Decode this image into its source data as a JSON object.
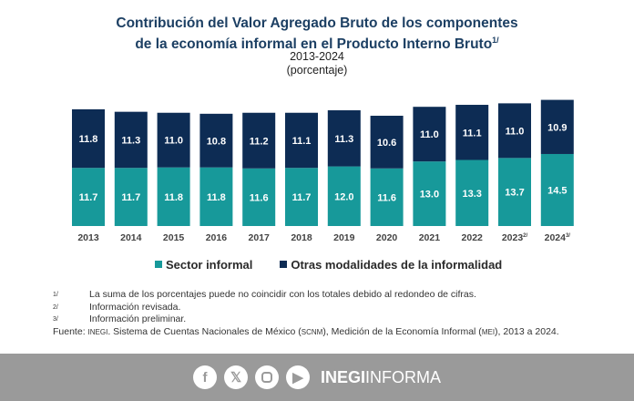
{
  "chart_data": {
    "type": "bar",
    "stacked": true,
    "title_line1": "Contribución del Valor Agregado Bruto de los componentes",
    "title_line2": "de la economía informal en el Producto Interno Bruto",
    "title_note": "1/",
    "subtitle": "2013-2024",
    "unit": "(porcentaje)",
    "categories": [
      "2013",
      "2014",
      "2015",
      "2016",
      "2017",
      "2018",
      "2019",
      "2020",
      "2021",
      "2022",
      "2023",
      "2024"
    ],
    "category_notes": [
      "",
      "",
      "",
      "",
      "",
      "",
      "",
      "",
      "",
      "",
      "2/",
      "3/"
    ],
    "series": [
      {
        "name": "Sector informal",
        "color": "#17999a",
        "values": [
          11.7,
          11.7,
          11.8,
          11.8,
          11.6,
          11.7,
          12.0,
          11.6,
          13.0,
          13.3,
          13.7,
          14.5
        ]
      },
      {
        "name": "Otras modalidades de la informalidad",
        "color": "#0d2c54",
        "values": [
          11.8,
          11.3,
          11.0,
          10.8,
          11.2,
          11.1,
          11.3,
          10.6,
          11.0,
          11.1,
          11.0,
          10.9
        ]
      }
    ],
    "legend": "bottom",
    "grid": false
  },
  "notes": [
    {
      "mark": "1/",
      "text": "La suma de los porcentajes puede no coincidir con los totales debido al redondeo de cifras."
    },
    {
      "mark": "2/",
      "text": "Información revisada."
    },
    {
      "mark": "3/",
      "text": "Información preliminar."
    }
  ],
  "source": {
    "label": "Fuente:",
    "org": "INEGI",
    "text1": ". Sistema de Cuentas Nacionales de México (",
    "scnm": "SCNM",
    "text2": "), Medición de la Economía Informal (",
    "mei": "MEI",
    "text3": "), 2013 a 2024."
  },
  "footer": {
    "brand_bold": "INEGI",
    "brand_light": "INFORMA",
    "icons": [
      "facebook-icon",
      "x-icon",
      "instagram-icon",
      "youtube-icon"
    ]
  }
}
